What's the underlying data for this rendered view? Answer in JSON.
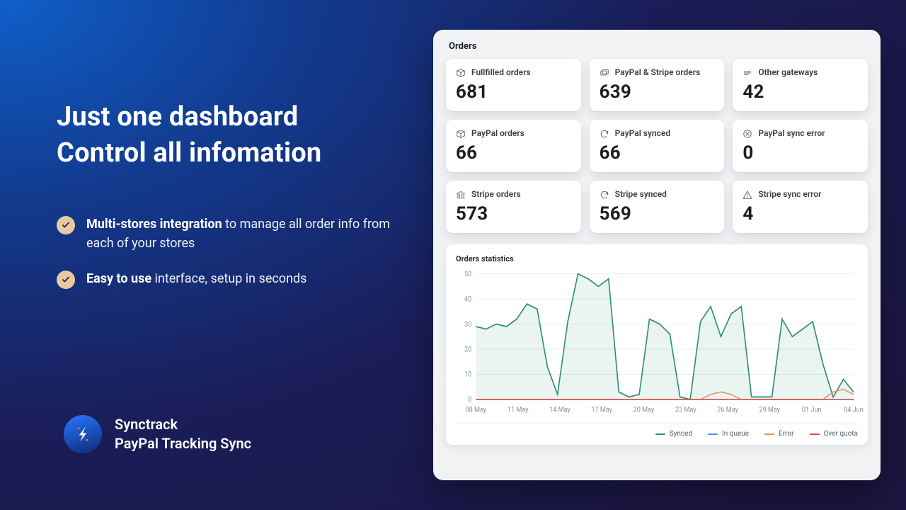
{
  "colors": {
    "bg_gradient_from": "#0f5fc9",
    "bg_gradient_mid": "#123a8e",
    "bg_gradient_to": "#1a1d58",
    "card_bg": "#ffffff",
    "panel_bg": "#f1f2f4",
    "text_primary": "#1b1f24",
    "text_muted": "#5a6270",
    "check_bg": "#e9c9a1",
    "check_mark": "#1a1d58"
  },
  "hero": {
    "headline_line1": "Just one dashboard",
    "headline_line2": "Control all infomation",
    "bullets": [
      {
        "strong": "Multi-stores integration",
        "rest": " to manage all order info from each of your stores"
      },
      {
        "strong": "Easy to use",
        "rest": " interface, setup in seconds"
      }
    ]
  },
  "brand": {
    "name_line1": "Synctrack",
    "name_line2": "PayPal Tracking Sync"
  },
  "orders": {
    "title": "Orders",
    "cards": [
      {
        "icon": "box",
        "label": "Fullfilled orders",
        "value": "681"
      },
      {
        "icon": "cards",
        "label": "PayPal & Stripe orders",
        "value": "639"
      },
      {
        "icon": "gateway",
        "label": "Other gateways",
        "value": "42"
      },
      {
        "icon": "box",
        "label": "PayPal orders",
        "value": "66"
      },
      {
        "icon": "sync",
        "label": "PayPal synced",
        "value": "66"
      },
      {
        "icon": "error",
        "label": "PayPal sync error",
        "value": "0"
      },
      {
        "icon": "bank",
        "label": "Stripe orders",
        "value": "573"
      },
      {
        "icon": "sync",
        "label": "Stripe synced",
        "value": "569"
      },
      {
        "icon": "warn",
        "label": "Stripe sync error",
        "value": "4"
      }
    ]
  },
  "chart": {
    "title": "Orders statistics",
    "type": "line",
    "ylim": [
      0,
      50
    ],
    "ytick_step": 10,
    "x_labels": [
      "08 May",
      "11 May",
      "14 May",
      "17 May",
      "20 May",
      "23 May",
      "26 May",
      "29 May",
      "01 Jun",
      "04 Jun"
    ],
    "grid_color": "#eceef1",
    "axis_color": "#d9dde3",
    "label_color": "#8a9099",
    "label_fontsize": 9,
    "series": {
      "synced": {
        "color": "#2f8f6f",
        "fill": "rgba(47,143,111,.10)",
        "values": [
          29,
          28,
          30,
          29,
          32,
          38,
          36,
          13,
          2,
          31,
          50,
          48,
          45,
          48,
          3,
          1,
          2,
          32,
          30,
          26,
          1,
          0,
          31,
          37,
          25,
          34,
          37,
          1,
          1,
          1,
          32,
          25,
          28,
          31,
          14,
          1,
          8,
          3
        ]
      },
      "in_queue": {
        "color": "#4a90e2",
        "values": [
          0,
          0,
          0,
          0,
          0,
          0,
          0,
          0,
          0,
          0,
          0,
          0,
          0,
          0,
          0,
          0,
          0,
          0,
          0,
          0,
          0,
          0,
          0,
          0,
          0,
          0,
          0,
          0,
          0,
          0,
          0,
          0,
          0,
          0,
          0,
          0,
          0,
          0
        ]
      },
      "error": {
        "color": "#e98b55",
        "values": [
          0,
          0,
          0,
          0,
          0,
          0,
          0,
          0,
          0,
          0,
          0,
          0,
          0,
          0,
          0,
          0,
          0,
          0,
          0,
          0,
          0,
          0,
          0,
          2,
          3,
          2,
          0,
          0,
          0,
          0,
          0,
          0,
          0,
          0,
          0,
          3,
          4,
          2
        ]
      },
      "over_quota": {
        "color": "#d94a4a",
        "values": [
          0,
          0,
          0,
          0,
          0,
          0,
          0,
          0,
          0,
          0,
          0,
          0,
          0,
          0,
          0,
          0,
          0,
          0,
          0,
          0,
          0,
          0,
          0,
          0,
          0,
          0,
          0,
          0,
          0,
          0,
          0,
          0,
          0,
          0,
          0,
          0,
          0,
          0
        ]
      }
    },
    "legend": [
      {
        "key": "synced",
        "label": "Synced",
        "color": "#2f8f6f"
      },
      {
        "key": "in_queue",
        "label": "In queue",
        "color": "#4a90e2"
      },
      {
        "key": "error",
        "label": "Error",
        "color": "#e98b55"
      },
      {
        "key": "over_quota",
        "label": "Over quota",
        "color": "#d94a4a"
      }
    ]
  }
}
